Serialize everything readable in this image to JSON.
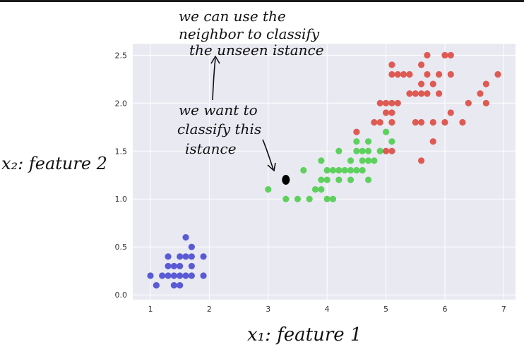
{
  "chart_data": {
    "type": "scatter",
    "title": "",
    "xlabel": "x₁: feature 1",
    "ylabel": "x₂: feature 2",
    "xlim": [
      0.7,
      7.2
    ],
    "ylim": [
      -0.05,
      2.62
    ],
    "xticks": [
      "1",
      "2",
      "3",
      "4",
      "5",
      "6",
      "7"
    ],
    "yticks": [
      "0.0",
      "0.5",
      "1.0",
      "1.5",
      "2.0",
      "2.5"
    ],
    "grid": true,
    "legend": "none",
    "series": [
      {
        "color": "#5a5ad6",
        "points": [
          [
            1.0,
            0.2
          ],
          [
            1.1,
            0.1
          ],
          [
            1.2,
            0.2
          ],
          [
            1.3,
            0.2
          ],
          [
            1.3,
            0.3
          ],
          [
            1.3,
            0.4
          ],
          [
            1.4,
            0.1
          ],
          [
            1.4,
            0.2
          ],
          [
            1.4,
            0.3
          ],
          [
            1.5,
            0.1
          ],
          [
            1.5,
            0.2
          ],
          [
            1.5,
            0.3
          ],
          [
            1.5,
            0.4
          ],
          [
            1.6,
            0.2
          ],
          [
            1.6,
            0.4
          ],
          [
            1.6,
            0.6
          ],
          [
            1.7,
            0.2
          ],
          [
            1.7,
            0.3
          ],
          [
            1.7,
            0.4
          ],
          [
            1.7,
            0.5
          ],
          [
            1.9,
            0.2
          ],
          [
            1.9,
            0.4
          ]
        ]
      },
      {
        "color": "#5ed05e",
        "points": [
          [
            3.0,
            1.1
          ],
          [
            3.3,
            1.0
          ],
          [
            3.5,
            1.0
          ],
          [
            3.6,
            1.3
          ],
          [
            3.7,
            1.0
          ],
          [
            3.8,
            1.1
          ],
          [
            3.9,
            1.1
          ],
          [
            3.9,
            1.2
          ],
          [
            3.9,
            1.4
          ],
          [
            4.0,
            1.0
          ],
          [
            4.0,
            1.2
          ],
          [
            4.0,
            1.3
          ],
          [
            4.1,
            1.0
          ],
          [
            4.1,
            1.3
          ],
          [
            4.2,
            1.2
          ],
          [
            4.2,
            1.3
          ],
          [
            4.2,
            1.5
          ],
          [
            4.3,
            1.3
          ],
          [
            4.4,
            1.2
          ],
          [
            4.4,
            1.3
          ],
          [
            4.4,
            1.4
          ],
          [
            4.5,
            1.3
          ],
          [
            4.5,
            1.5
          ],
          [
            4.5,
            1.6
          ],
          [
            4.6,
            1.3
          ],
          [
            4.6,
            1.4
          ],
          [
            4.6,
            1.5
          ],
          [
            4.7,
            1.2
          ],
          [
            4.7,
            1.4
          ],
          [
            4.7,
            1.5
          ],
          [
            4.7,
            1.6
          ],
          [
            4.8,
            1.4
          ],
          [
            4.9,
            1.5
          ],
          [
            5.0,
            1.7
          ],
          [
            5.1,
            1.6
          ]
        ]
      },
      {
        "color": "#de5a52",
        "points": [
          [
            4.5,
            1.7
          ],
          [
            4.8,
            1.8
          ],
          [
            4.9,
            1.8
          ],
          [
            4.9,
            2.0
          ],
          [
            5.0,
            1.5
          ],
          [
            5.0,
            1.9
          ],
          [
            5.0,
            2.0
          ],
          [
            5.1,
            1.5
          ],
          [
            5.1,
            1.8
          ],
          [
            5.1,
            1.9
          ],
          [
            5.1,
            2.0
          ],
          [
            5.1,
            2.3
          ],
          [
            5.1,
            2.4
          ],
          [
            5.2,
            2.0
          ],
          [
            5.2,
            2.3
          ],
          [
            5.3,
            2.3
          ],
          [
            5.4,
            2.3
          ],
          [
            5.4,
            2.1
          ],
          [
            5.5,
            1.8
          ],
          [
            5.5,
            2.1
          ],
          [
            5.6,
            1.4
          ],
          [
            5.6,
            1.8
          ],
          [
            5.6,
            2.1
          ],
          [
            5.6,
            2.2
          ],
          [
            5.6,
            2.4
          ],
          [
            5.7,
            2.1
          ],
          [
            5.7,
            2.3
          ],
          [
            5.7,
            2.5
          ],
          [
            5.8,
            1.6
          ],
          [
            5.8,
            1.8
          ],
          [
            5.8,
            2.2
          ],
          [
            5.9,
            2.3
          ],
          [
            5.9,
            2.1
          ],
          [
            6.0,
            1.8
          ],
          [
            6.0,
            2.5
          ],
          [
            6.1,
            1.9
          ],
          [
            6.1,
            2.3
          ],
          [
            6.1,
            2.5
          ],
          [
            6.3,
            1.8
          ],
          [
            6.4,
            2.0
          ],
          [
            6.6,
            2.1
          ],
          [
            6.7,
            2.0
          ],
          [
            6.7,
            2.2
          ],
          [
            6.9,
            2.3
          ]
        ]
      }
    ],
    "query_point": {
      "x": 3.3,
      "y": 1.2,
      "color": "#000000"
    },
    "annotations": [
      {
        "text": [
          "we can use the",
          "neighbor to classify",
          "the unseen istance"
        ]
      },
      {
        "text": [
          "we want to",
          "classify this",
          "istance"
        ]
      }
    ]
  }
}
